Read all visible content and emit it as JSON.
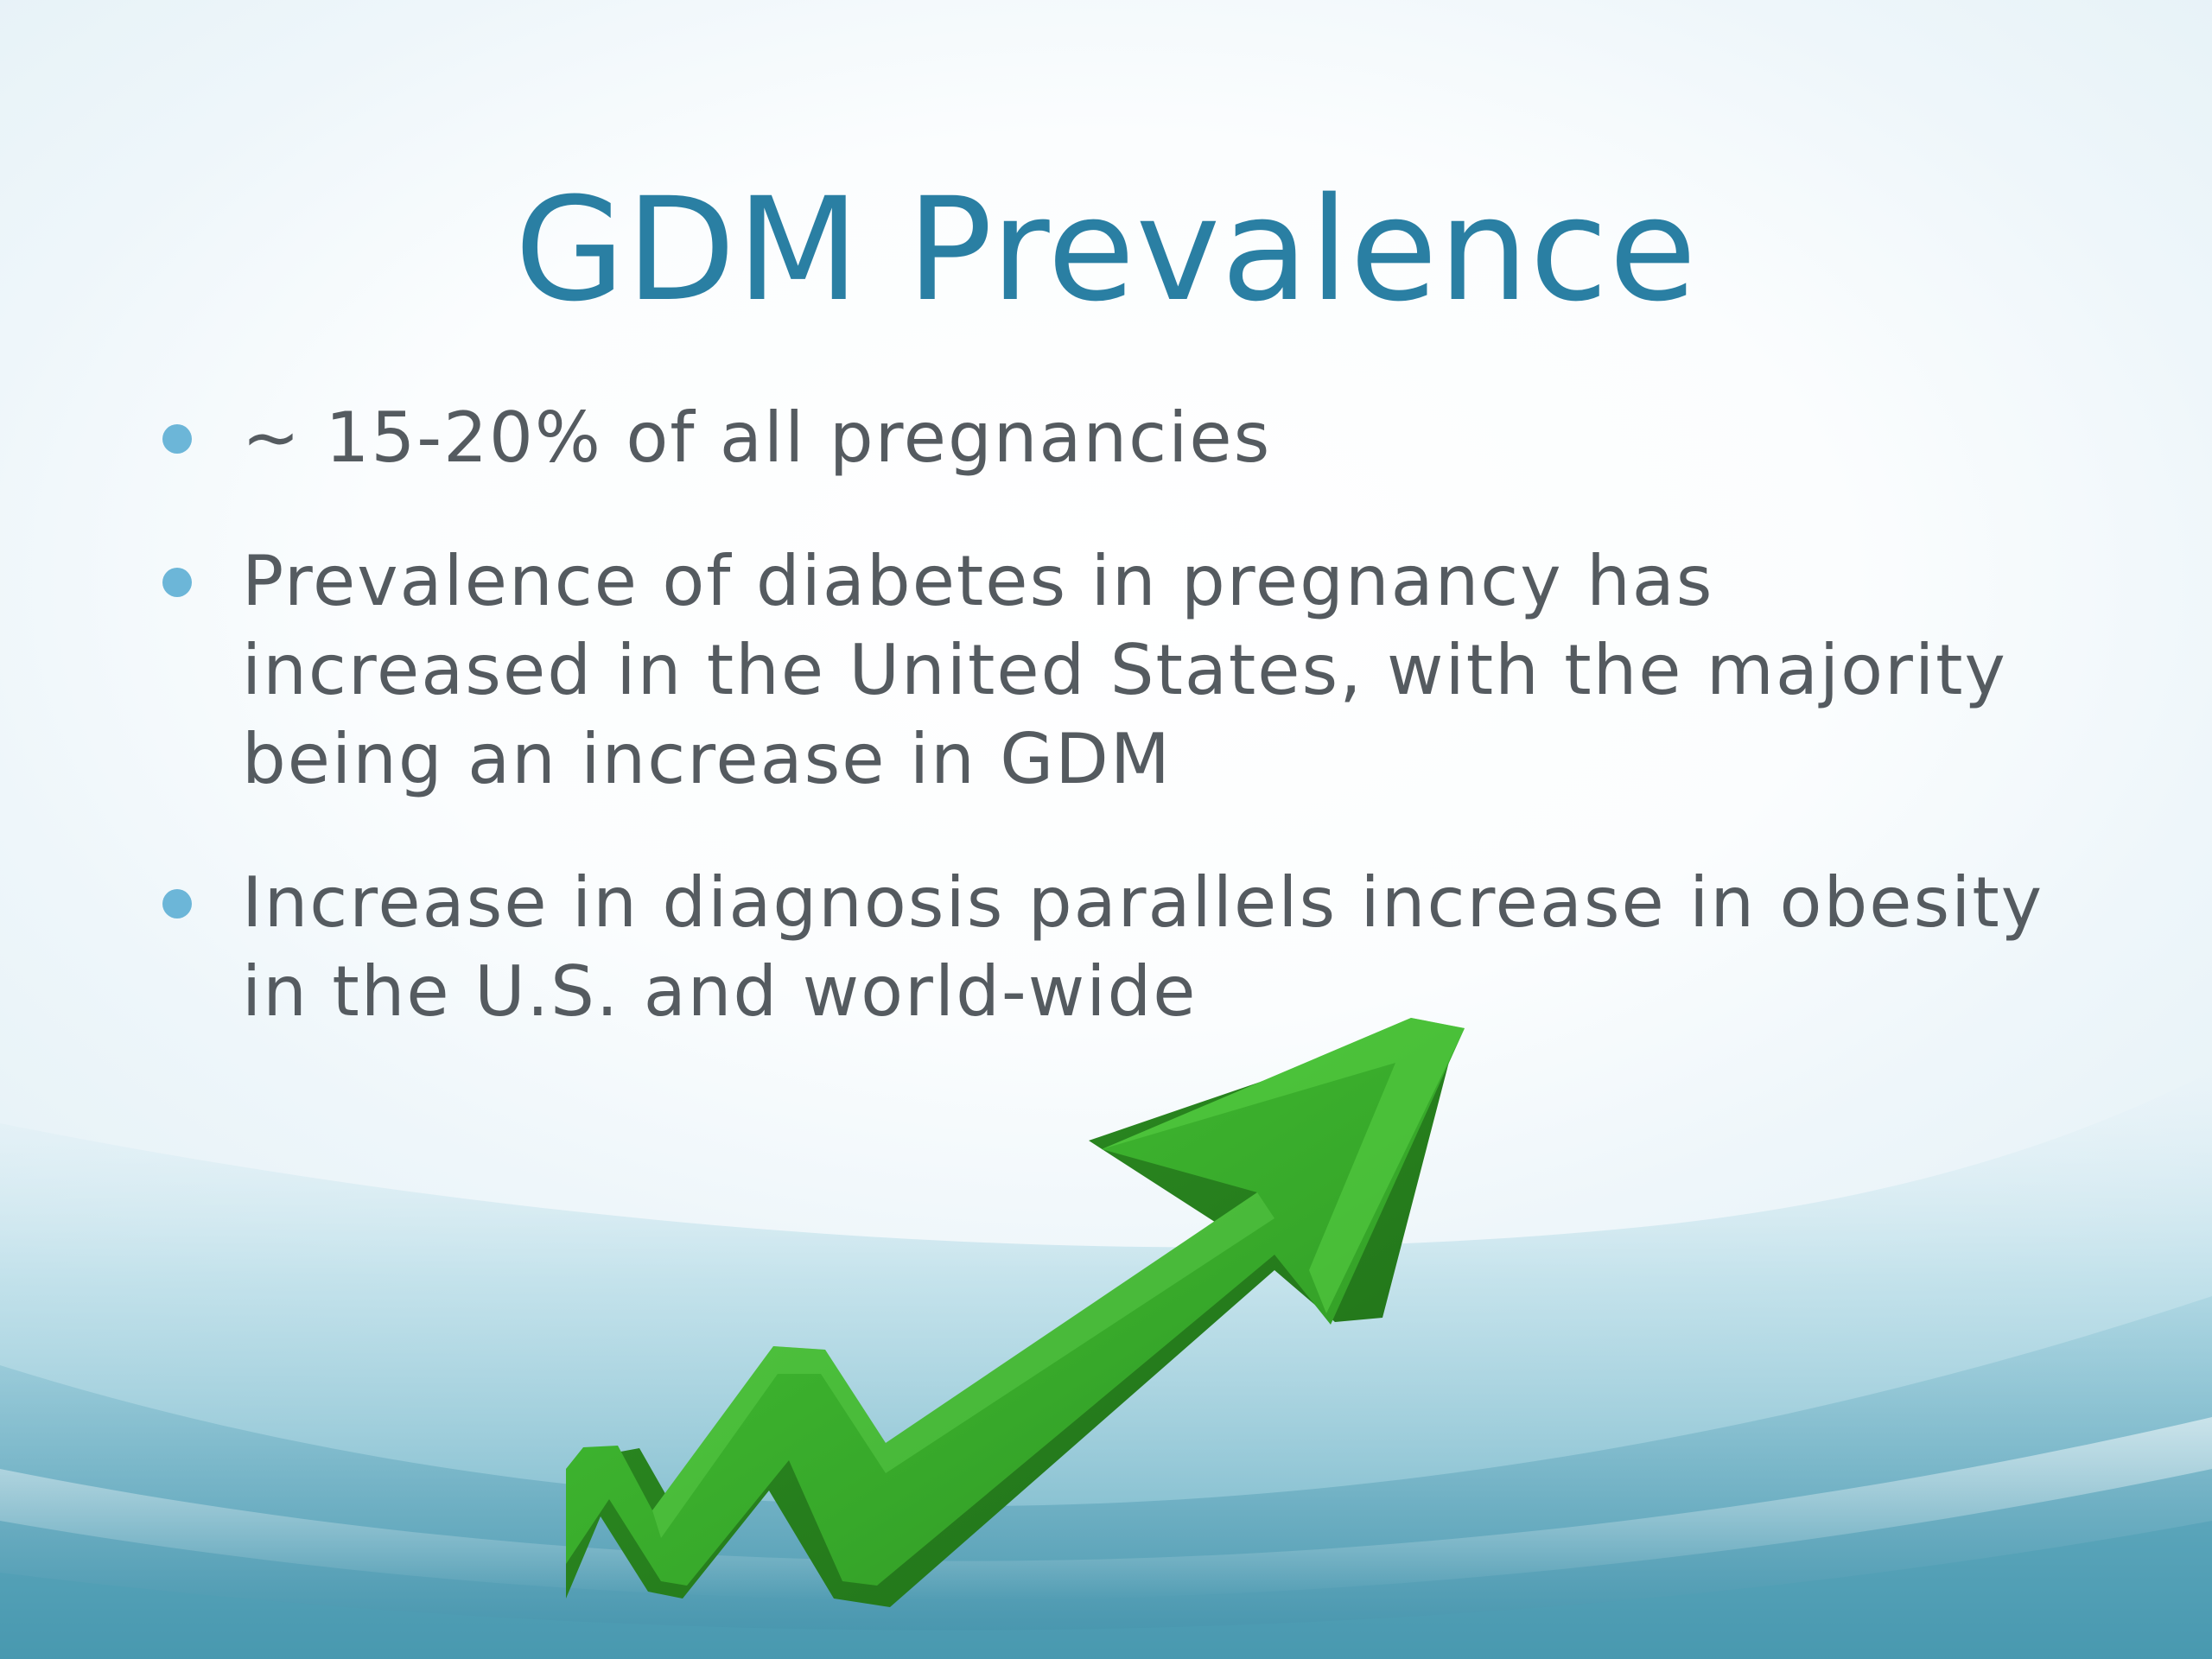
{
  "slide": {
    "title": "GDM Prevalence",
    "bullets": [
      "~ 15-20% of all pregnancies",
      "Prevalence of diabetes in pregnancy has increased in the United States, with the majority being an increase in GDM",
      "Increase in diagnosis parallels increase in obesity in the U.S. and world-wide"
    ]
  },
  "colors": {
    "title": "#2a7fa3",
    "body_text": "#555b60",
    "bullet": "#6cb6d8",
    "arrow": "#3cb52a",
    "wave": "#4f9fb4"
  },
  "icons": {
    "arrow": "upward-trend-arrow-icon",
    "bullet": "bullet-dot-icon"
  }
}
